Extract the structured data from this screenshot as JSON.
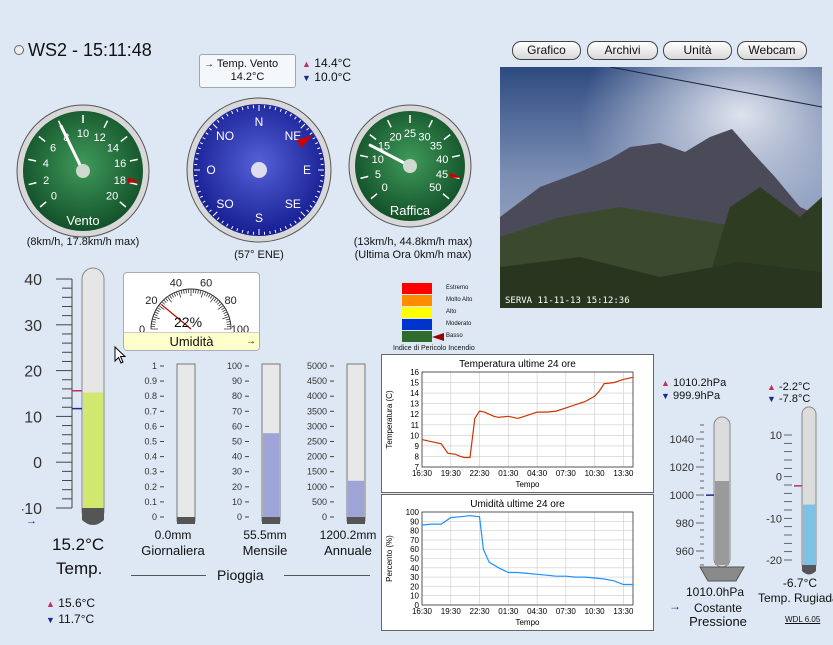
{
  "header": {
    "station": "WS2 - 15:11:48"
  },
  "nav": {
    "grafico": "Grafico",
    "archivi": "Archivi",
    "unita": "Unità",
    "webcam": "Webcam"
  },
  "wind_temp": {
    "label": "Temp. Vento",
    "value": "14.2°C",
    "max": "14.4°C",
    "min": "10.0°C"
  },
  "vento": {
    "label": "Vento",
    "ticks": [
      "0",
      "2",
      "4",
      "6",
      "8",
      "10",
      "12",
      "14",
      "16",
      "18",
      "20"
    ],
    "caption": "(8km/h, 17.8km/h max)",
    "speed_kmh": 8,
    "max_kmh": 17.8
  },
  "compass": {
    "dirs": [
      "N",
      "NE",
      "E",
      "SE",
      "S",
      "SO",
      "O",
      "NO"
    ],
    "caption": "(57° ENE)",
    "deg": 57
  },
  "raffica": {
    "label": "Raffica",
    "ticks": [
      "0",
      "5",
      "10",
      "15",
      "20",
      "25",
      "30",
      "35",
      "40",
      "45",
      "50"
    ],
    "caption1": "(13km/h, 44.8km/h max)",
    "caption2": "(Ultima Ora 0km/h max)",
    "speed_kmh": 13,
    "max_kmh": 44.8
  },
  "webcam": {
    "stamp": "SERVA 11-11-13 15:12:36"
  },
  "temp": {
    "ticks": [
      "40",
      "30",
      "20",
      "10",
      "0",
      "-10"
    ],
    "value": "15.2°C",
    "label": "Temp.",
    "max": "15.6°C",
    "min": "11.7°C",
    "value_c": 15.2
  },
  "umidita": {
    "label": "Umidità",
    "value": "22%",
    "ticks": [
      "0",
      "20",
      "40",
      "60",
      "80",
      "100"
    ],
    "value_pct": 22
  },
  "fire": {
    "title": "Indice di Pericolo Incendio",
    "levels": [
      {
        "name": "Estremo",
        "color": "#ff0000"
      },
      {
        "name": "Molto Alto",
        "color": "#ff8c00"
      },
      {
        "name": "Alto",
        "color": "#ffff00"
      },
      {
        "name": "Moderato",
        "color": "#0033cc"
      },
      {
        "name": "Basso",
        "color": "#2e6b2e"
      }
    ]
  },
  "rain": {
    "label": "Pioggia",
    "gauges": [
      {
        "ticks": [
          "1",
          "0.9",
          "0.8",
          "0.7",
          "0.6",
          "0.5",
          "0.4",
          "0.3",
          "0.2",
          "0.1",
          "0"
        ],
        "value": "0.0mm",
        "name": "Giornaliera",
        "fill": 0
      },
      {
        "ticks": [
          "100",
          "90",
          "80",
          "70",
          "60",
          "50",
          "40",
          "30",
          "20",
          "10",
          "0"
        ],
        "value": "55.5mm",
        "name": "Mensile",
        "fill": 0.555
      },
      {
        "ticks": [
          "5000",
          "4500",
          "4000",
          "3500",
          "3000",
          "2500",
          "2000",
          "1500",
          "1000",
          "500",
          "0"
        ],
        "value": "1200.2mm",
        "name": "Annuale",
        "fill": 0.24
      }
    ]
  },
  "chart_data": [
    {
      "type": "line",
      "title": "Temperatura ultime 24 ore",
      "xlabel": "Tempo",
      "ylabel": "Temperatura (C)",
      "ylim": [
        7,
        16
      ],
      "yticks": [
        7,
        8,
        9,
        10,
        11,
        12,
        13,
        14,
        15,
        16
      ],
      "xticks": [
        "16:30",
        "19:30",
        "22:30",
        "01:30",
        "04:30",
        "07:30",
        "10:30",
        "13:30"
      ],
      "x": [
        0,
        1,
        2,
        2.7,
        3.5,
        4,
        4.4,
        5,
        5.5,
        6,
        6.5,
        7,
        7.5,
        8,
        9,
        10,
        11,
        12,
        13,
        14,
        15,
        16,
        17,
        18,
        18.5,
        19,
        20,
        21,
        22
      ],
      "values": [
        9.6,
        9.4,
        9.2,
        8.3,
        8.2,
        8.0,
        7.9,
        7.9,
        11.6,
        12.3,
        12.2,
        12.0,
        11.8,
        11.7,
        11.8,
        11.6,
        11.9,
        12.2,
        12.2,
        12.3,
        12.6,
        12.9,
        13.2,
        13.7,
        14.2,
        14.9,
        15.0,
        15.3,
        15.5
      ],
      "color": "#cc3300"
    },
    {
      "type": "line",
      "title": "Umidità ultime 24 ore",
      "xlabel": "Tempo",
      "ylabel": "Percento (%)",
      "ylim": [
        0,
        100
      ],
      "yticks": [
        0,
        10,
        20,
        30,
        40,
        50,
        60,
        70,
        80,
        90,
        100
      ],
      "xticks": [
        "16:30",
        "19:30",
        "22:30",
        "01:30",
        "04:30",
        "07:30",
        "10:30",
        "13:30"
      ],
      "x": [
        0,
        1,
        2,
        3,
        4,
        5,
        6,
        6.4,
        7,
        8,
        9,
        10,
        11,
        12,
        13,
        14,
        15,
        16,
        17,
        18,
        19,
        20,
        21,
        22
      ],
      "values": [
        86,
        87,
        87,
        94,
        95,
        96,
        95,
        60,
        46,
        40,
        35,
        35,
        34,
        33,
        32,
        31,
        31,
        30,
        30,
        29,
        28,
        26,
        22,
        22
      ],
      "color": "#1e90ff"
    }
  ],
  "pressione": {
    "max": "1010.2hPa",
    "min": "999.9hPa",
    "ticks": [
      "1040",
      "1020",
      "1000",
      "980",
      "960"
    ],
    "value": "1010.0hPa",
    "trend": "Costante",
    "label": "Pressione",
    "value_hpa": 1010.0
  },
  "rugiada": {
    "max": "-2.2°C",
    "min": "-7.8°C",
    "ticks": [
      "10",
      "0",
      "-10",
      "-20"
    ],
    "value": "-6.7°C",
    "label": "Temp. Rugiada",
    "value_c": -6.7
  },
  "version": "WDL 6.05"
}
